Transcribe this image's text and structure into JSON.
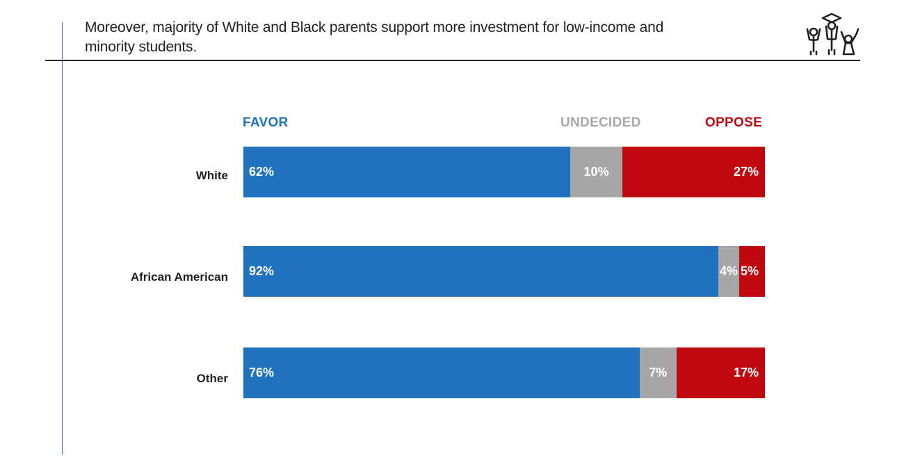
{
  "title": "Moreover, majority of White and Black parents support more investment for low-income and minority students.",
  "logo_icon": "children-graduation-cap-icon",
  "chart_data": {
    "type": "bar",
    "orientation": "horizontal",
    "stacked": true,
    "categories": [
      "White",
      "African American",
      "Other"
    ],
    "series": [
      {
        "name": "FAVOR",
        "color": "#1f73be",
        "values": [
          62,
          92,
          76
        ],
        "labels": [
          "62%",
          "92%",
          "76%"
        ]
      },
      {
        "name": "UNDECIDED",
        "color": "#a7a7a7",
        "values": [
          10,
          4,
          7
        ],
        "labels": [
          "10%",
          "4%",
          "7%"
        ]
      },
      {
        "name": "OPPOSE",
        "color": "#c0080f",
        "values": [
          27,
          5,
          17
        ],
        "labels": [
          "27%",
          "5%",
          "17%"
        ]
      }
    ],
    "legend_position": "top"
  }
}
